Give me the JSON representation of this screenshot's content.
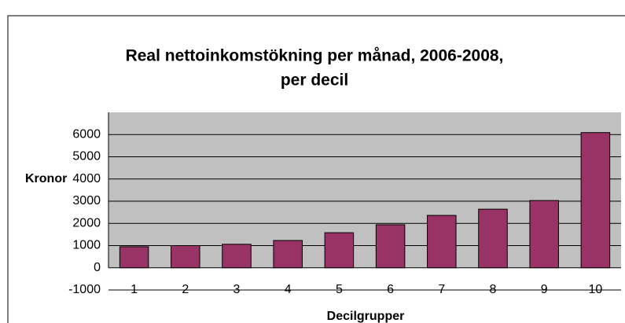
{
  "chart_data": {
    "type": "bar",
    "title": [
      "Real nettoinkomstökning per månad, 2006-2008,",
      "per decil"
    ],
    "x_label": "Decilgrupper",
    "y_label": "Kronor",
    "categories": [
      "1",
      "2",
      "3",
      "4",
      "5",
      "6",
      "7",
      "8",
      "9",
      "10"
    ],
    "values": [
      950,
      1000,
      1060,
      1230,
      1580,
      1940,
      2360,
      2640,
      3030,
      6090
    ],
    "color": "#993366",
    "ylim": [
      -1000,
      7000
    ],
    "yticks": [
      -1000,
      0,
      1000,
      2000,
      3000,
      4000,
      5000,
      6000
    ],
    "grid": true
  }
}
